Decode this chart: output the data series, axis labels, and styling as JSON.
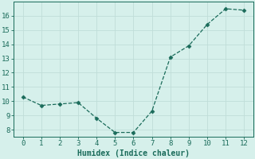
{
  "x": [
    0,
    1,
    2,
    3,
    4,
    5,
    6,
    7,
    8,
    9,
    10,
    11,
    12
  ],
  "y": [
    10.3,
    9.7,
    9.8,
    9.9,
    8.8,
    7.8,
    7.8,
    9.3,
    13.1,
    13.9,
    15.4,
    16.5,
    16.4
  ],
  "line_color": "#1a6b5a",
  "marker": "D",
  "marker_size": 2.5,
  "bg_color": "#d6f0eb",
  "grid_color": "#c0ddd8",
  "xlabel": "Humidex (Indice chaleur)",
  "xlabel_fontsize": 7,
  "tick_fontsize": 6.5,
  "xlim": [
    -0.5,
    12.5
  ],
  "ylim": [
    7.5,
    17.0
  ],
  "yticks": [
    8,
    9,
    10,
    11,
    12,
    13,
    14,
    15,
    16
  ],
  "xticks": [
    0,
    1,
    2,
    3,
    4,
    5,
    6,
    7,
    8,
    9,
    10,
    11,
    12
  ]
}
